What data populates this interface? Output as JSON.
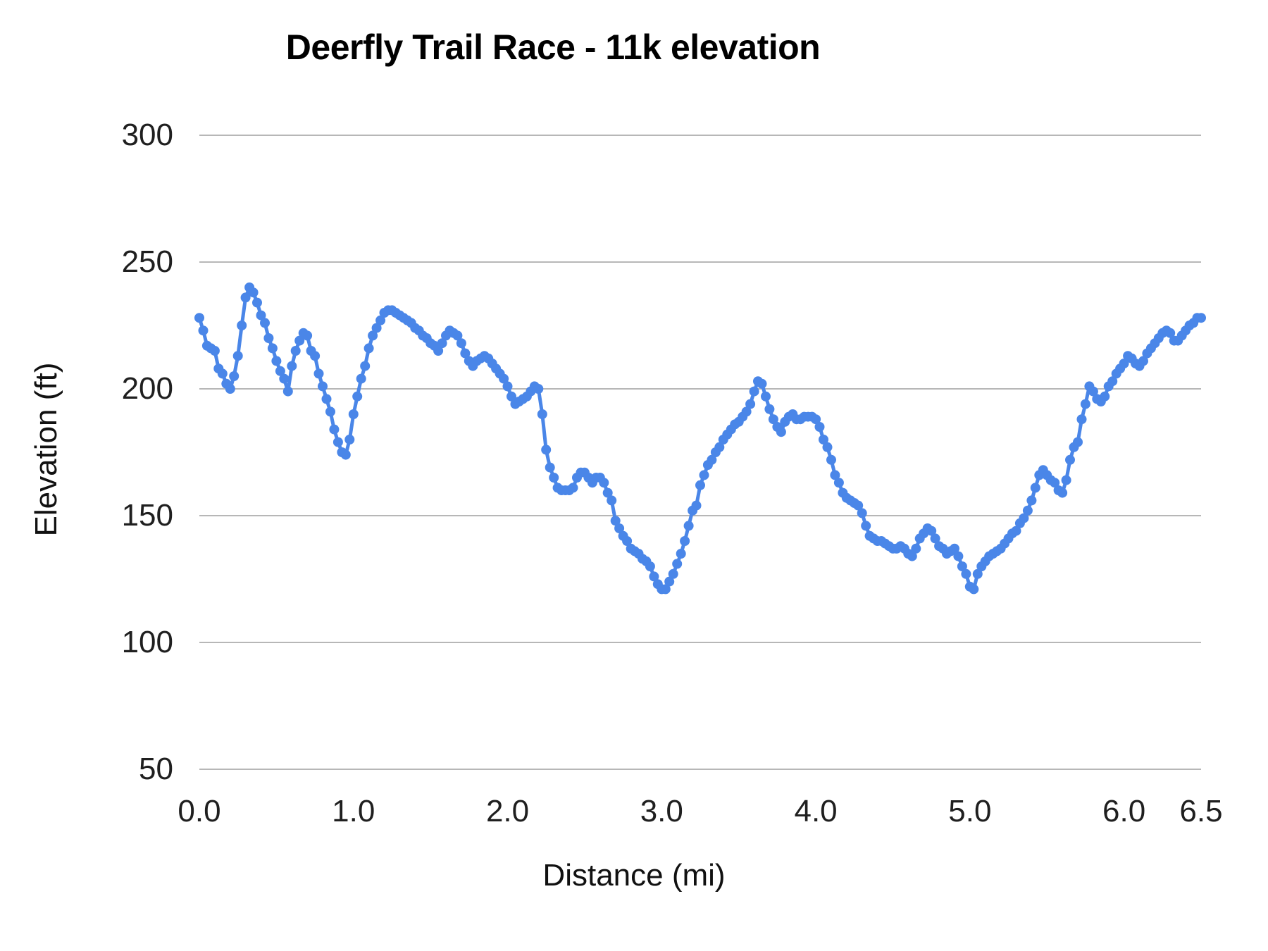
{
  "title": "Deerfly Trail Race - 11k elevation",
  "chart_data": {
    "type": "line",
    "title": "Deerfly Trail Race - 11k elevation",
    "xlabel": "Distance (mi)",
    "ylabel": "Elevation (ft)",
    "xlim": [
      0,
      6.5
    ],
    "ylim": [
      50,
      300
    ],
    "grid": "horizontal",
    "legend": "none",
    "x_ticks": [
      {
        "value": 0.0,
        "label": "0.0"
      },
      {
        "value": 1.0,
        "label": "1.0"
      },
      {
        "value": 2.0,
        "label": "2.0"
      },
      {
        "value": 3.0,
        "label": "3.0"
      },
      {
        "value": 4.0,
        "label": "4.0"
      },
      {
        "value": 5.0,
        "label": "5.0"
      },
      {
        "value": 6.0,
        "label": "6.0"
      },
      {
        "value": 6.5,
        "label": "6.5"
      }
    ],
    "y_ticks": [
      {
        "value": 300,
        "label": "300"
      },
      {
        "value": 250,
        "label": "250"
      },
      {
        "value": 200,
        "label": "200"
      },
      {
        "value": 150,
        "label": "150"
      },
      {
        "value": 100,
        "label": "100"
      },
      {
        "value": 50,
        "label": "50"
      }
    ],
    "colors": {
      "line": "#4a86e8",
      "gridline": "#b7b7b7",
      "tick_text": "#1f1f1f",
      "title_text": "#000000",
      "background": "#ffffff"
    },
    "series": [
      {
        "name": "Elevation",
        "color": "#4a86e8",
        "marker": "circle",
        "x_start": 0,
        "x_step": 0.025,
        "values": [
          228,
          223,
          217,
          216,
          215,
          208,
          206,
          202,
          200,
          205,
          213,
          225,
          236,
          240,
          238,
          234,
          229,
          226,
          220,
          216,
          211,
          207,
          204,
          199,
          209,
          215,
          219,
          222,
          221,
          215,
          213,
          206,
          201,
          196,
          191,
          184,
          179,
          175,
          174,
          180,
          190,
          197,
          204,
          209,
          216,
          221,
          224,
          227,
          230,
          231,
          231,
          230,
          229,
          228,
          227,
          226,
          224,
          223,
          221,
          220,
          218,
          217,
          215,
          218,
          221,
          223,
          222,
          221,
          218,
          214,
          211,
          209,
          211,
          212,
          213,
          212,
          210,
          208,
          206,
          204,
          201,
          197,
          194,
          195,
          196,
          197,
          199,
          201,
          200,
          190,
          176,
          169,
          165,
          161,
          160,
          160,
          160,
          161,
          165,
          167,
          167,
          165,
          163,
          165,
          165,
          163,
          159,
          156,
          148,
          145,
          142,
          140,
          137,
          136,
          135,
          133,
          132,
          130,
          126,
          123,
          121,
          121,
          124,
          127,
          131,
          135,
          140,
          146,
          152,
          154,
          162,
          166,
          170,
          172,
          175,
          177,
          180,
          182,
          184,
          186,
          187,
          189,
          191,
          194,
          199,
          203,
          202,
          197,
          192,
          188,
          185,
          183,
          187,
          189,
          190,
          188,
          188,
          189,
          189,
          189,
          188,
          185,
          180,
          177,
          172,
          166,
          163,
          159,
          157,
          156,
          155,
          154,
          151,
          146,
          142,
          141,
          140,
          140,
          139,
          138,
          137,
          137,
          138,
          137,
          135,
          134,
          137,
          141,
          143,
          145,
          144,
          141,
          138,
          137,
          135,
          136,
          137,
          134,
          130,
          127,
          122,
          121,
          127,
          130,
          132,
          134,
          135,
          136,
          137,
          139,
          141,
          143,
          144,
          147,
          149,
          152,
          156,
          161,
          166,
          168,
          166,
          164,
          163,
          160,
          159,
          164,
          172,
          177,
          179,
          188,
          194,
          201,
          199,
          196,
          195,
          197,
          201,
          203,
          206,
          208,
          210,
          213,
          212,
          210,
          209,
          211,
          214,
          216,
          218,
          220,
          222,
          223,
          222,
          219,
          219,
          221,
          223,
          225,
          226,
          228,
          228
        ]
      }
    ]
  }
}
